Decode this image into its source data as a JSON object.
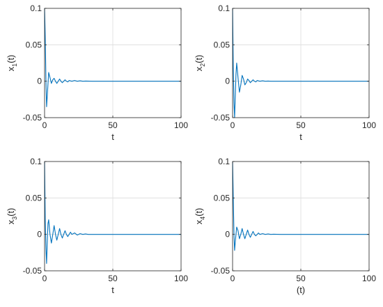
{
  "colors": {
    "line": "#0072bd",
    "grid": "#dcdcdc",
    "axis": "#262626",
    "background": "#ffffff"
  },
  "chart_data": [
    {
      "type": "line",
      "xlabel": "t",
      "ylabel": {
        "base": "x",
        "sub": "1",
        "suffix": "(t)"
      },
      "xlim": [
        0,
        100
      ],
      "ylim": [
        -0.05,
        0.1
      ],
      "xticks": [
        "0",
        "50",
        "100"
      ],
      "yticks": [
        "-0.05",
        "0",
        "0.05",
        "0.1"
      ],
      "grid": true,
      "series": [
        {
          "x": [
            0,
            0.5,
            1,
            1.5,
            2,
            3,
            4,
            5,
            6,
            7,
            8,
            9,
            10,
            11,
            12,
            13,
            14,
            15,
            16,
            17,
            18,
            20,
            22,
            24,
            26,
            28,
            30,
            35,
            40,
            50,
            60,
            80,
            100
          ],
          "y": [
            0.1,
            0.06,
            0.0,
            -0.035,
            -0.02,
            0.012,
            0.005,
            -0.003,
            0.002,
            0.004,
            0.0,
            -0.003,
            0.0,
            0.003,
            0.0,
            -0.002,
            0.0,
            0.002,
            0.0,
            -0.001,
            0.001,
            0.0,
            0.001,
            0.0,
            0.0005,
            0.0,
            0.0003,
            0.0,
            0.0,
            0.0,
            0.0,
            0.0,
            0.0
          ]
        }
      ]
    },
    {
      "type": "line",
      "xlabel": "t",
      "ylabel": {
        "base": "x",
        "sub": "2",
        "suffix": "(t)"
      },
      "xlim": [
        0,
        100
      ],
      "ylim": [
        -0.05,
        0.1
      ],
      "xticks": [
        "0",
        "50",
        "100"
      ],
      "yticks": [
        "-0.05",
        "0",
        "0.05",
        "0.1"
      ],
      "grid": true,
      "series": [
        {
          "x": [
            0,
            0.5,
            1,
            1.5,
            2,
            2.5,
            3,
            4,
            5,
            6,
            7,
            8,
            9,
            10,
            11,
            12,
            13,
            14,
            15,
            16,
            17,
            18,
            20,
            22,
            24,
            26,
            28,
            30,
            35,
            40,
            50,
            60,
            80,
            100
          ],
          "y": [
            0.1,
            0.02,
            -0.03,
            -0.05,
            -0.02,
            0.01,
            0.025,
            0.005,
            -0.015,
            -0.005,
            0.008,
            0.003,
            -0.005,
            -0.002,
            0.003,
            0.001,
            -0.002,
            0.0,
            0.002,
            0.0,
            -0.001,
            0.001,
            0.0,
            0.0005,
            0.0,
            0.0003,
            0.0,
            0.0,
            0.0,
            0.0,
            0.0,
            0.0,
            0.0,
            0.0
          ]
        }
      ]
    },
    {
      "type": "line",
      "xlabel": "t",
      "ylabel": {
        "base": "x",
        "sub": "3",
        "suffix": "(t)"
      },
      "xlim": [
        0,
        100
      ],
      "ylim": [
        -0.05,
        0.1
      ],
      "xticks": [
        "0",
        "50",
        "100"
      ],
      "yticks": [
        "-0.05",
        "0",
        "0.05",
        "0.1"
      ],
      "grid": true,
      "series": [
        {
          "x": [
            0,
            0.5,
            1,
            1.5,
            2,
            2.5,
            3,
            4,
            5,
            6,
            7,
            8,
            9,
            10,
            11,
            12,
            13,
            14,
            15,
            16,
            17,
            18,
            19,
            20,
            22,
            24,
            26,
            28,
            30,
            32,
            35,
            40,
            50,
            60,
            80,
            100
          ],
          "y": [
            0.1,
            0.02,
            -0.02,
            -0.04,
            -0.01,
            0.015,
            0.02,
            0.0,
            -0.012,
            0.0,
            0.012,
            0.0,
            -0.008,
            0.0,
            0.008,
            0.0,
            -0.005,
            0.0,
            0.005,
            0.0,
            -0.003,
            0.0,
            0.003,
            0.0,
            0.002,
            -0.001,
            0.001,
            0.0,
            0.0005,
            0.0,
            0.0,
            0.0,
            0.0,
            0.0,
            0.0,
            0.0
          ]
        }
      ]
    },
    {
      "type": "line",
      "xlabel": "(t)",
      "ylabel": {
        "base": "x",
        "sub": "4",
        "suffix": "(t)"
      },
      "xlim": [
        0,
        100
      ],
      "ylim": [
        -0.05,
        0.1
      ],
      "xticks": [
        "0",
        "50",
        "100"
      ],
      "yticks": [
        "-0.05",
        "0",
        "0.05",
        "0.1"
      ],
      "grid": true,
      "series": [
        {
          "x": [
            0,
            0.5,
            1,
            1.5,
            2,
            3,
            4,
            5,
            6,
            7,
            8,
            9,
            10,
            11,
            12,
            13,
            14,
            15,
            16,
            17,
            18,
            19,
            20,
            22,
            24,
            26,
            28,
            30,
            35,
            40,
            50,
            60,
            80,
            100
          ],
          "y": [
            0.1,
            0.05,
            0.0,
            -0.022,
            -0.01,
            0.01,
            0.005,
            -0.006,
            0.0,
            0.008,
            0.0,
            -0.006,
            0.0,
            0.006,
            0.0,
            -0.004,
            0.0,
            0.004,
            0.0,
            -0.002,
            0.0,
            0.002,
            0.0,
            0.001,
            0.0,
            0.0005,
            0.0,
            0.0003,
            0.0,
            0.0,
            0.0,
            0.0,
            0.0,
            0.0
          ]
        }
      ]
    }
  ]
}
